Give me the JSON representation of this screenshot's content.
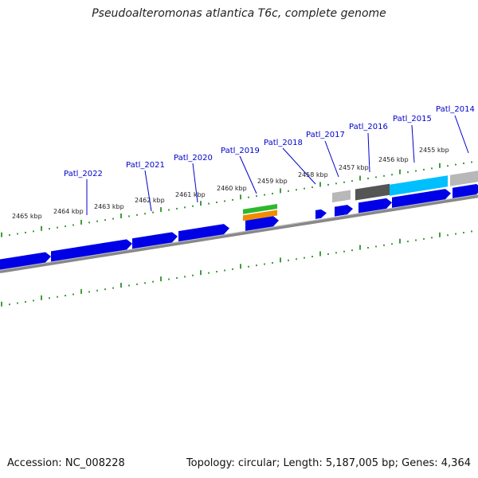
{
  "title": "Pseudoalteromonas atlantica T6c, complete genome",
  "footer": {
    "accession_label": "Accession:",
    "accession_value": "NC_008228",
    "topology_text": "Topology: circular; Length: 5,187,005 bp; Genes: 4,364"
  },
  "scale_labels": [
    "2465 kbp",
    "2464 kbp",
    "2463 kbp",
    "2462 kbp",
    "2461 kbp",
    "2460 kbp",
    "2459 kbp",
    "2458 kbp",
    "2457 kbp",
    "2456 kbp",
    "2455 kbp"
  ],
  "gene_labels": [
    "Patl_2022",
    "Patl_2021",
    "Patl_2020",
    "Patl_2019",
    "Patl_2018",
    "Patl_2017",
    "Patl_2016",
    "Patl_2015",
    "Patl_2014"
  ],
  "colors": {
    "cds": "#0000e6",
    "cds_light": "#00bfff",
    "gray_dark": "#555555",
    "gray_light": "#b8b8b8",
    "green": "#2db82d",
    "orange": "#f08c00",
    "tick": "#007a00",
    "label": "#0000cc",
    "backbone": "#888888"
  }
}
